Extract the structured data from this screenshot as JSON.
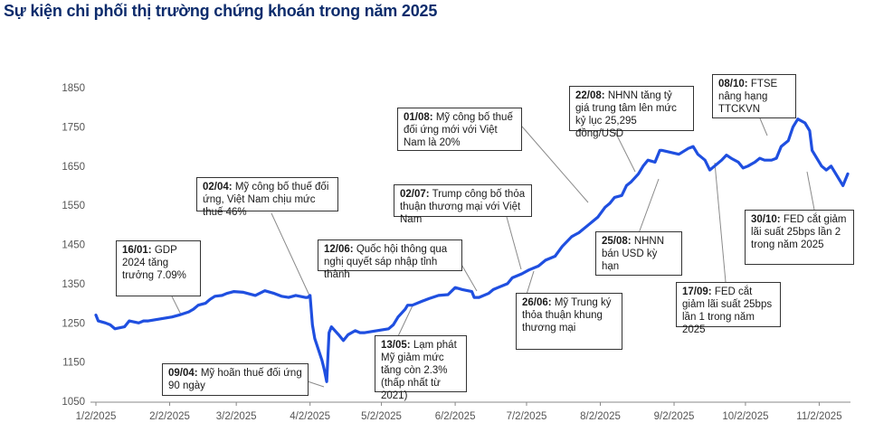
{
  "title": "Sự kiện chi phối thị trường chứng khoán trong năm 2025",
  "colors": {
    "line": "#1f4fe0",
    "title": "#0d2c6c",
    "axis": "#888888"
  },
  "chart_data": {
    "type": "line",
    "title": "Sự kiện chi phối thị trường chứng khoán trong năm 2025",
    "xlabel": "",
    "ylabel": "",
    "x_ticks": [
      "1/2/2025",
      "2/2/2025",
      "3/2/2025",
      "4/2/2025",
      "5/2/2025",
      "6/2/2025",
      "7/2/2025",
      "8/2/2025",
      "9/2/2025",
      "10/2/2025",
      "11/2/2025"
    ],
    "y_ticks": [
      1050,
      1150,
      1250,
      1350,
      1450,
      1550,
      1650,
      1750,
      1850
    ],
    "ylim": [
      1050,
      1850
    ],
    "xlim": [
      "2025-01-02",
      "2025-11-14"
    ],
    "grid": false,
    "series": [
      {
        "x": [
          "2025-01-02",
          "2025-01-03",
          "2025-01-06",
          "2025-01-08",
          "2025-01-10",
          "2025-01-14",
          "2025-01-16",
          "2025-01-20",
          "2025-01-22",
          "2025-01-24",
          "2025-02-03",
          "2025-02-06",
          "2025-02-10",
          "2025-02-12",
          "2025-02-14",
          "2025-02-17",
          "2025-02-19",
          "2025-02-21",
          "2025-02-24",
          "2025-02-26",
          "2025-03-01",
          "2025-03-05",
          "2025-03-10",
          "2025-03-14",
          "2025-03-18",
          "2025-03-21",
          "2025-03-24",
          "2025-03-27",
          "2025-03-31",
          "2025-04-01",
          "2025-04-02",
          "2025-04-03",
          "2025-04-04",
          "2025-04-07",
          "2025-04-08",
          "2025-04-09",
          "2025-04-10",
          "2025-04-11",
          "2025-04-14",
          "2025-04-16",
          "2025-04-18",
          "2025-04-21",
          "2025-04-23",
          "2025-04-25",
          "2025-05-05",
          "2025-05-07",
          "2025-05-09",
          "2025-05-12",
          "2025-05-13",
          "2025-05-15",
          "2025-05-19",
          "2025-05-22",
          "2025-05-26",
          "2025-05-30",
          "2025-06-02",
          "2025-06-05",
          "2025-06-09",
          "2025-06-10",
          "2025-06-12",
          "2025-06-16",
          "2025-06-18",
          "2025-06-20",
          "2025-06-24",
          "2025-06-26",
          "2025-06-30",
          "2025-07-03",
          "2025-07-07",
          "2025-07-10",
          "2025-07-14",
          "2025-07-17",
          "2025-07-21",
          "2025-07-24",
          "2025-07-28",
          "2025-07-30",
          "2025-08-01",
          "2025-08-04",
          "2025-08-06",
          "2025-08-08",
          "2025-08-11",
          "2025-08-13",
          "2025-08-15",
          "2025-08-18",
          "2025-08-20",
          "2025-08-22",
          "2025-08-25",
          "2025-08-27",
          "2025-08-28",
          "2025-09-04",
          "2025-09-08",
          "2025-09-10",
          "2025-09-12",
          "2025-09-15",
          "2025-09-17",
          "2025-09-19",
          "2025-09-22",
          "2025-09-24",
          "2025-09-26",
          "2025-09-29",
          "2025-10-01",
          "2025-10-03",
          "2025-10-06",
          "2025-10-08",
          "2025-10-10",
          "2025-10-13",
          "2025-10-15",
          "2025-10-17",
          "2025-10-20",
          "2025-10-22",
          "2025-10-24",
          "2025-10-27",
          "2025-10-29",
          "2025-10-30",
          "2025-11-03",
          "2025-11-05",
          "2025-11-07",
          "2025-11-10",
          "2025-11-12",
          "2025-11-14"
        ],
        "y": [
          1270,
          1255,
          1250,
          1245,
          1235,
          1240,
          1255,
          1250,
          1255,
          1255,
          1265,
          1270,
          1278,
          1285,
          1295,
          1300,
          1310,
          1318,
          1320,
          1325,
          1330,
          1328,
          1320,
          1332,
          1325,
          1318,
          1315,
          1320,
          1315,
          1315,
          1320,
          1245,
          1210,
          1155,
          1130,
          1100,
          1225,
          1240,
          1220,
          1205,
          1220,
          1230,
          1225,
          1225,
          1235,
          1245,
          1265,
          1285,
          1295,
          1295,
          1305,
          1312,
          1320,
          1322,
          1340,
          1335,
          1330,
          1315,
          1315,
          1325,
          1335,
          1340,
          1350,
          1365,
          1375,
          1385,
          1395,
          1410,
          1420,
          1445,
          1470,
          1480,
          1500,
          1510,
          1520,
          1545,
          1555,
          1570,
          1575,
          1600,
          1610,
          1630,
          1650,
          1665,
          1660,
          1690,
          1690,
          1680,
          1695,
          1700,
          1680,
          1665,
          1640,
          1650,
          1665,
          1678,
          1670,
          1660,
          1645,
          1650,
          1660,
          1670,
          1665,
          1665,
          1670,
          1700,
          1715,
          1750,
          1770,
          1760,
          1740,
          1690,
          1650,
          1640,
          1650,
          1620,
          1600,
          1630
        ]
      }
    ],
    "annotations": [
      {
        "date_label": "16/01:",
        "text": "GDP 2024 tăng trưởng 7.09%"
      },
      {
        "date_label": "02/04:",
        "text": "Mỹ công bố thuế đối ứng, Việt Nam chịu mức thuế 46%"
      },
      {
        "date_label": "09/04:",
        "text": "Mỹ hoãn thuế đối ứng 90 ngày"
      },
      {
        "date_label": "13/05:",
        "text": "Lạm phát Mỹ giảm mức tăng còn 2.3% (thấp nhất từ 2021)"
      },
      {
        "date_label": "12/06:",
        "text": "Quốc hội thông qua nghị quyết sáp nhập tỉnh thành"
      },
      {
        "date_label": "02/07:",
        "text": "Trump công bố thỏa thuận thương mại với Việt Nam"
      },
      {
        "date_label": "26/06:",
        "text": "Mỹ Trung ký thỏa thuận khung thương mại"
      },
      {
        "date_label": "01/08:",
        "text": "Mỹ công bố thuế đối ứng mới với Việt Nam là 20%"
      },
      {
        "date_label": "22/08:",
        "text": "NHNN tăng tỷ giá trung tâm lên mức kỷ lục 25,295 đồng/USD"
      },
      {
        "date_label": "25/08:",
        "text": "NHNN bán USD kỳ hạn"
      },
      {
        "date_label": "08/10:",
        "text": "FTSE nâng hạng TTCKVN"
      },
      {
        "date_label": "17/09:",
        "text": "FED cắt giảm lãi suất 25bps lần 1 trong năm 2025"
      },
      {
        "date_label": "30/10:",
        "text": "FED cắt giảm lãi suất 25bps lần 2 trong năm 2025"
      }
    ]
  }
}
